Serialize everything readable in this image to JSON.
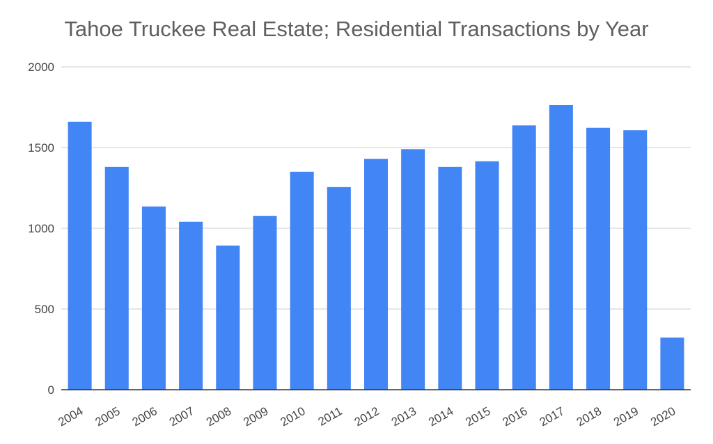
{
  "chart_data": {
    "type": "bar",
    "title": "Tahoe Truckee Real Estate; Residential Transactions by Year",
    "xlabel": "",
    "ylabel": "",
    "categories": [
      "2004",
      "2005",
      "2006",
      "2007",
      "2008",
      "2009",
      "2010",
      "2011",
      "2012",
      "2013",
      "2014",
      "2015",
      "2016",
      "2017",
      "2018",
      "2019",
      "2020"
    ],
    "series": [
      {
        "values": [
          1660,
          1380,
          1135,
          1040,
          893,
          1077,
          1350,
          1255,
          1430,
          1490,
          1380,
          1415,
          1637,
          1763,
          1622,
          1607,
          323
        ],
        "color": "#4285f4"
      }
    ],
    "ylim": [
      0,
      2000
    ],
    "yticks": [
      0,
      500,
      1000,
      1500,
      2000
    ],
    "grid": true,
    "legend": "none"
  }
}
